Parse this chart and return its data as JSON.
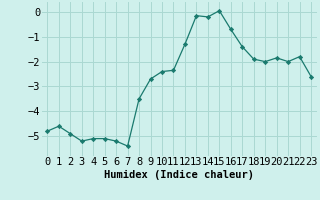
{
  "x": [
    0,
    1,
    2,
    3,
    4,
    5,
    6,
    7,
    8,
    9,
    10,
    11,
    12,
    13,
    14,
    15,
    16,
    17,
    18,
    19,
    20,
    21,
    22,
    23
  ],
  "y": [
    -4.8,
    -4.6,
    -4.9,
    -5.2,
    -5.1,
    -5.1,
    -5.2,
    -5.4,
    -3.5,
    -2.7,
    -2.4,
    -2.35,
    -1.3,
    -0.15,
    -0.2,
    0.05,
    -0.7,
    -1.4,
    -1.9,
    -2.0,
    -1.85,
    -2.0,
    -1.8,
    -2.6
  ],
  "line_color": "#1a7a6e",
  "marker": "D",
  "marker_size": 2.2,
  "bg_color": "#cff0ec",
  "grid_color": "#aad8d2",
  "xlabel": "Humidex (Indice chaleur)",
  "xlim": [
    -0.5,
    23.5
  ],
  "ylim": [
    -5.8,
    0.4
  ],
  "yticks": [
    0,
    -1,
    -2,
    -3,
    -4,
    -5
  ],
  "xticks": [
    0,
    1,
    2,
    3,
    4,
    5,
    6,
    7,
    8,
    9,
    10,
    11,
    12,
    13,
    14,
    15,
    16,
    17,
    18,
    19,
    20,
    21,
    22,
    23
  ],
  "xtick_labels": [
    "0",
    "1",
    "2",
    "3",
    "4",
    "5",
    "6",
    "7",
    "8",
    "9",
    "10",
    "11",
    "12",
    "13",
    "14",
    "15",
    "16",
    "17",
    "18",
    "19",
    "20",
    "21",
    "22",
    "23"
  ],
  "xlabel_fontsize": 7.5,
  "tick_fontsize": 7.5,
  "line_width": 0.9
}
